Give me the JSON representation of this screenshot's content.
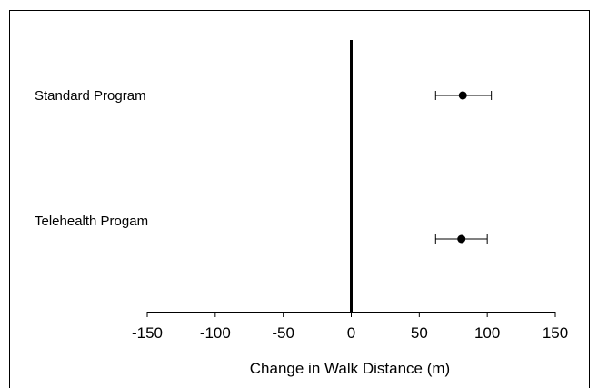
{
  "chart_data": {
    "type": "forest",
    "title": "",
    "xlabel": "Change in Walk Distance (m)",
    "ylabel": "",
    "xlim": [
      -150,
      150
    ],
    "xticks": [
      -150,
      -100,
      -50,
      0,
      50,
      100,
      150
    ],
    "xtick_labels": [
      "-150",
      "-100",
      "-50",
      "0",
      "50",
      "100",
      "150"
    ],
    "reference_line": 0,
    "grid": false,
    "categories": [
      "Standard Program",
      "Telehealth Progam"
    ],
    "estimates": [
      82,
      81
    ],
    "ci_lower": [
      62,
      62
    ],
    "ci_upper": [
      103,
      100
    ]
  }
}
